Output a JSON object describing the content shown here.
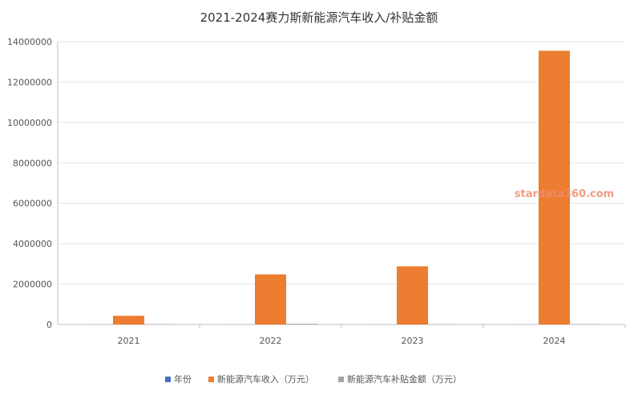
{
  "chart_data": {
    "type": "bar",
    "title": "2021-2024赛力斯新能源汽车收入/补贴金额",
    "categories": [
      "2021",
      "2022",
      "2023",
      "2024"
    ],
    "series": [
      {
        "name": "年份",
        "values": [
          2021,
          2022,
          2023,
          2024
        ],
        "color": "#4472c4"
      },
      {
        "name": "新能源汽车收入（万元）",
        "values": [
          430000,
          2480000,
          2880000,
          13550000
        ],
        "color": "#ed7d31"
      },
      {
        "name": "新能源汽车补贴金额（万元）",
        "values": [
          18000,
          35000,
          8000,
          20000
        ],
        "color": "#a5a5a5"
      }
    ],
    "ylim": [
      0,
      14000000
    ],
    "yticks": [
      0,
      2000000,
      4000000,
      6000000,
      8000000,
      10000000,
      12000000,
      14000000
    ],
    "grid": true,
    "legend": "bottom"
  },
  "watermark": "stardata360.com"
}
